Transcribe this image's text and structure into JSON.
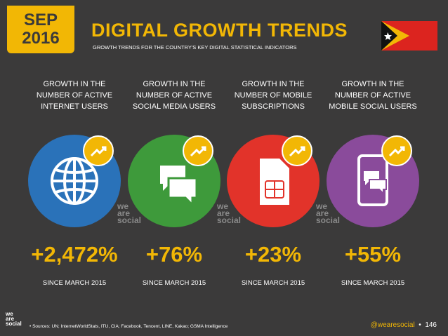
{
  "header": {
    "month": "SEP",
    "year": "2016",
    "title": "DIGITAL GROWTH TRENDS",
    "subtitle": "GROWTH TRENDS FOR THE COUNTRY'S KEY DIGITAL STATISTICAL INDICATORS"
  },
  "panels": [
    {
      "label": "GROWTH IN THE NUMBER OF ACTIVE INTERNET USERS",
      "value": "+2,472%",
      "since": "SINCE MARCH 2015"
    },
    {
      "label": "GROWTH IN THE NUMBER OF ACTIVE SOCIAL MEDIA USERS",
      "value": "+76%",
      "since": "SINCE MARCH 2015"
    },
    {
      "label": "GROWTH IN THE NUMBER OF MOBILE SUBSCRIPTIONS",
      "value": "+23%",
      "since": "SINCE MARCH 2015"
    },
    {
      "label": "GROWTH IN THE NUMBER OF ACTIVE MOBILE SOCIAL USERS",
      "value": "+55%",
      "since": "SINCE MARCH 2015"
    }
  ],
  "watermark": [
    "we",
    "are",
    "social"
  ],
  "footer": {
    "logo": [
      "we",
      "are",
      "social"
    ],
    "sources": "• Sources: UN; InternetWorldStats, ITU, CIA; Facebook, Tencent, LINE, Kakao; GSMA Intelligence",
    "handle": "@wearesocial",
    "page": "146"
  }
}
